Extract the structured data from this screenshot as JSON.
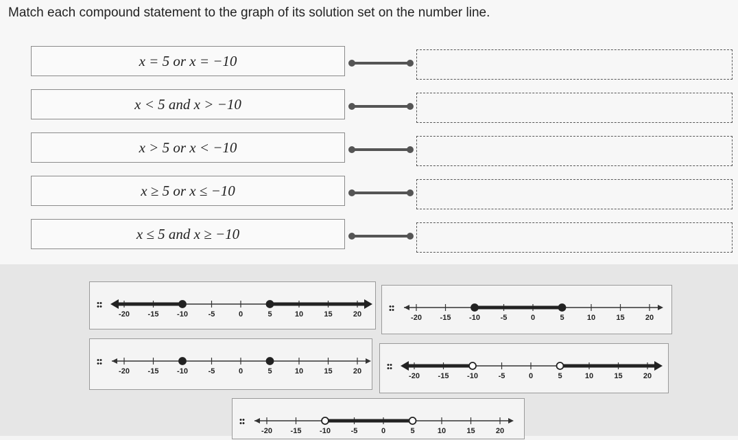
{
  "header": {
    "title": "Match each compound statement to the graph of its solution set on the number line."
  },
  "statements": [
    "x = 5 or x = −10",
    "x < 5 and x > −10",
    "x > 5 or x < −10",
    "x ≥ 5 or x ≤ −10",
    "x ≤ 5 and x ≥ −10"
  ],
  "number_line": {
    "xlim": [
      -20,
      20
    ],
    "ticks": [
      -20,
      -15,
      -10,
      -5,
      0,
      5,
      10,
      15,
      20
    ]
  },
  "cards": [
    {
      "points": [
        {
          "value": -10,
          "open": false
        },
        {
          "value": 5,
          "open": false
        }
      ],
      "shading": "outside"
    },
    {
      "points": [
        {
          "value": -10,
          "open": false
        },
        {
          "value": 5,
          "open": false
        }
      ],
      "shading": "between"
    },
    {
      "points": [
        {
          "value": -10,
          "open": false
        },
        {
          "value": 5,
          "open": false
        }
      ],
      "shading": "none"
    },
    {
      "points": [
        {
          "value": -10,
          "open": true
        },
        {
          "value": 5,
          "open": true
        }
      ],
      "shading": "outside"
    },
    {
      "points": [
        {
          "value": -10,
          "open": true
        },
        {
          "value": 5,
          "open": true
        }
      ],
      "shading": "between"
    }
  ]
}
